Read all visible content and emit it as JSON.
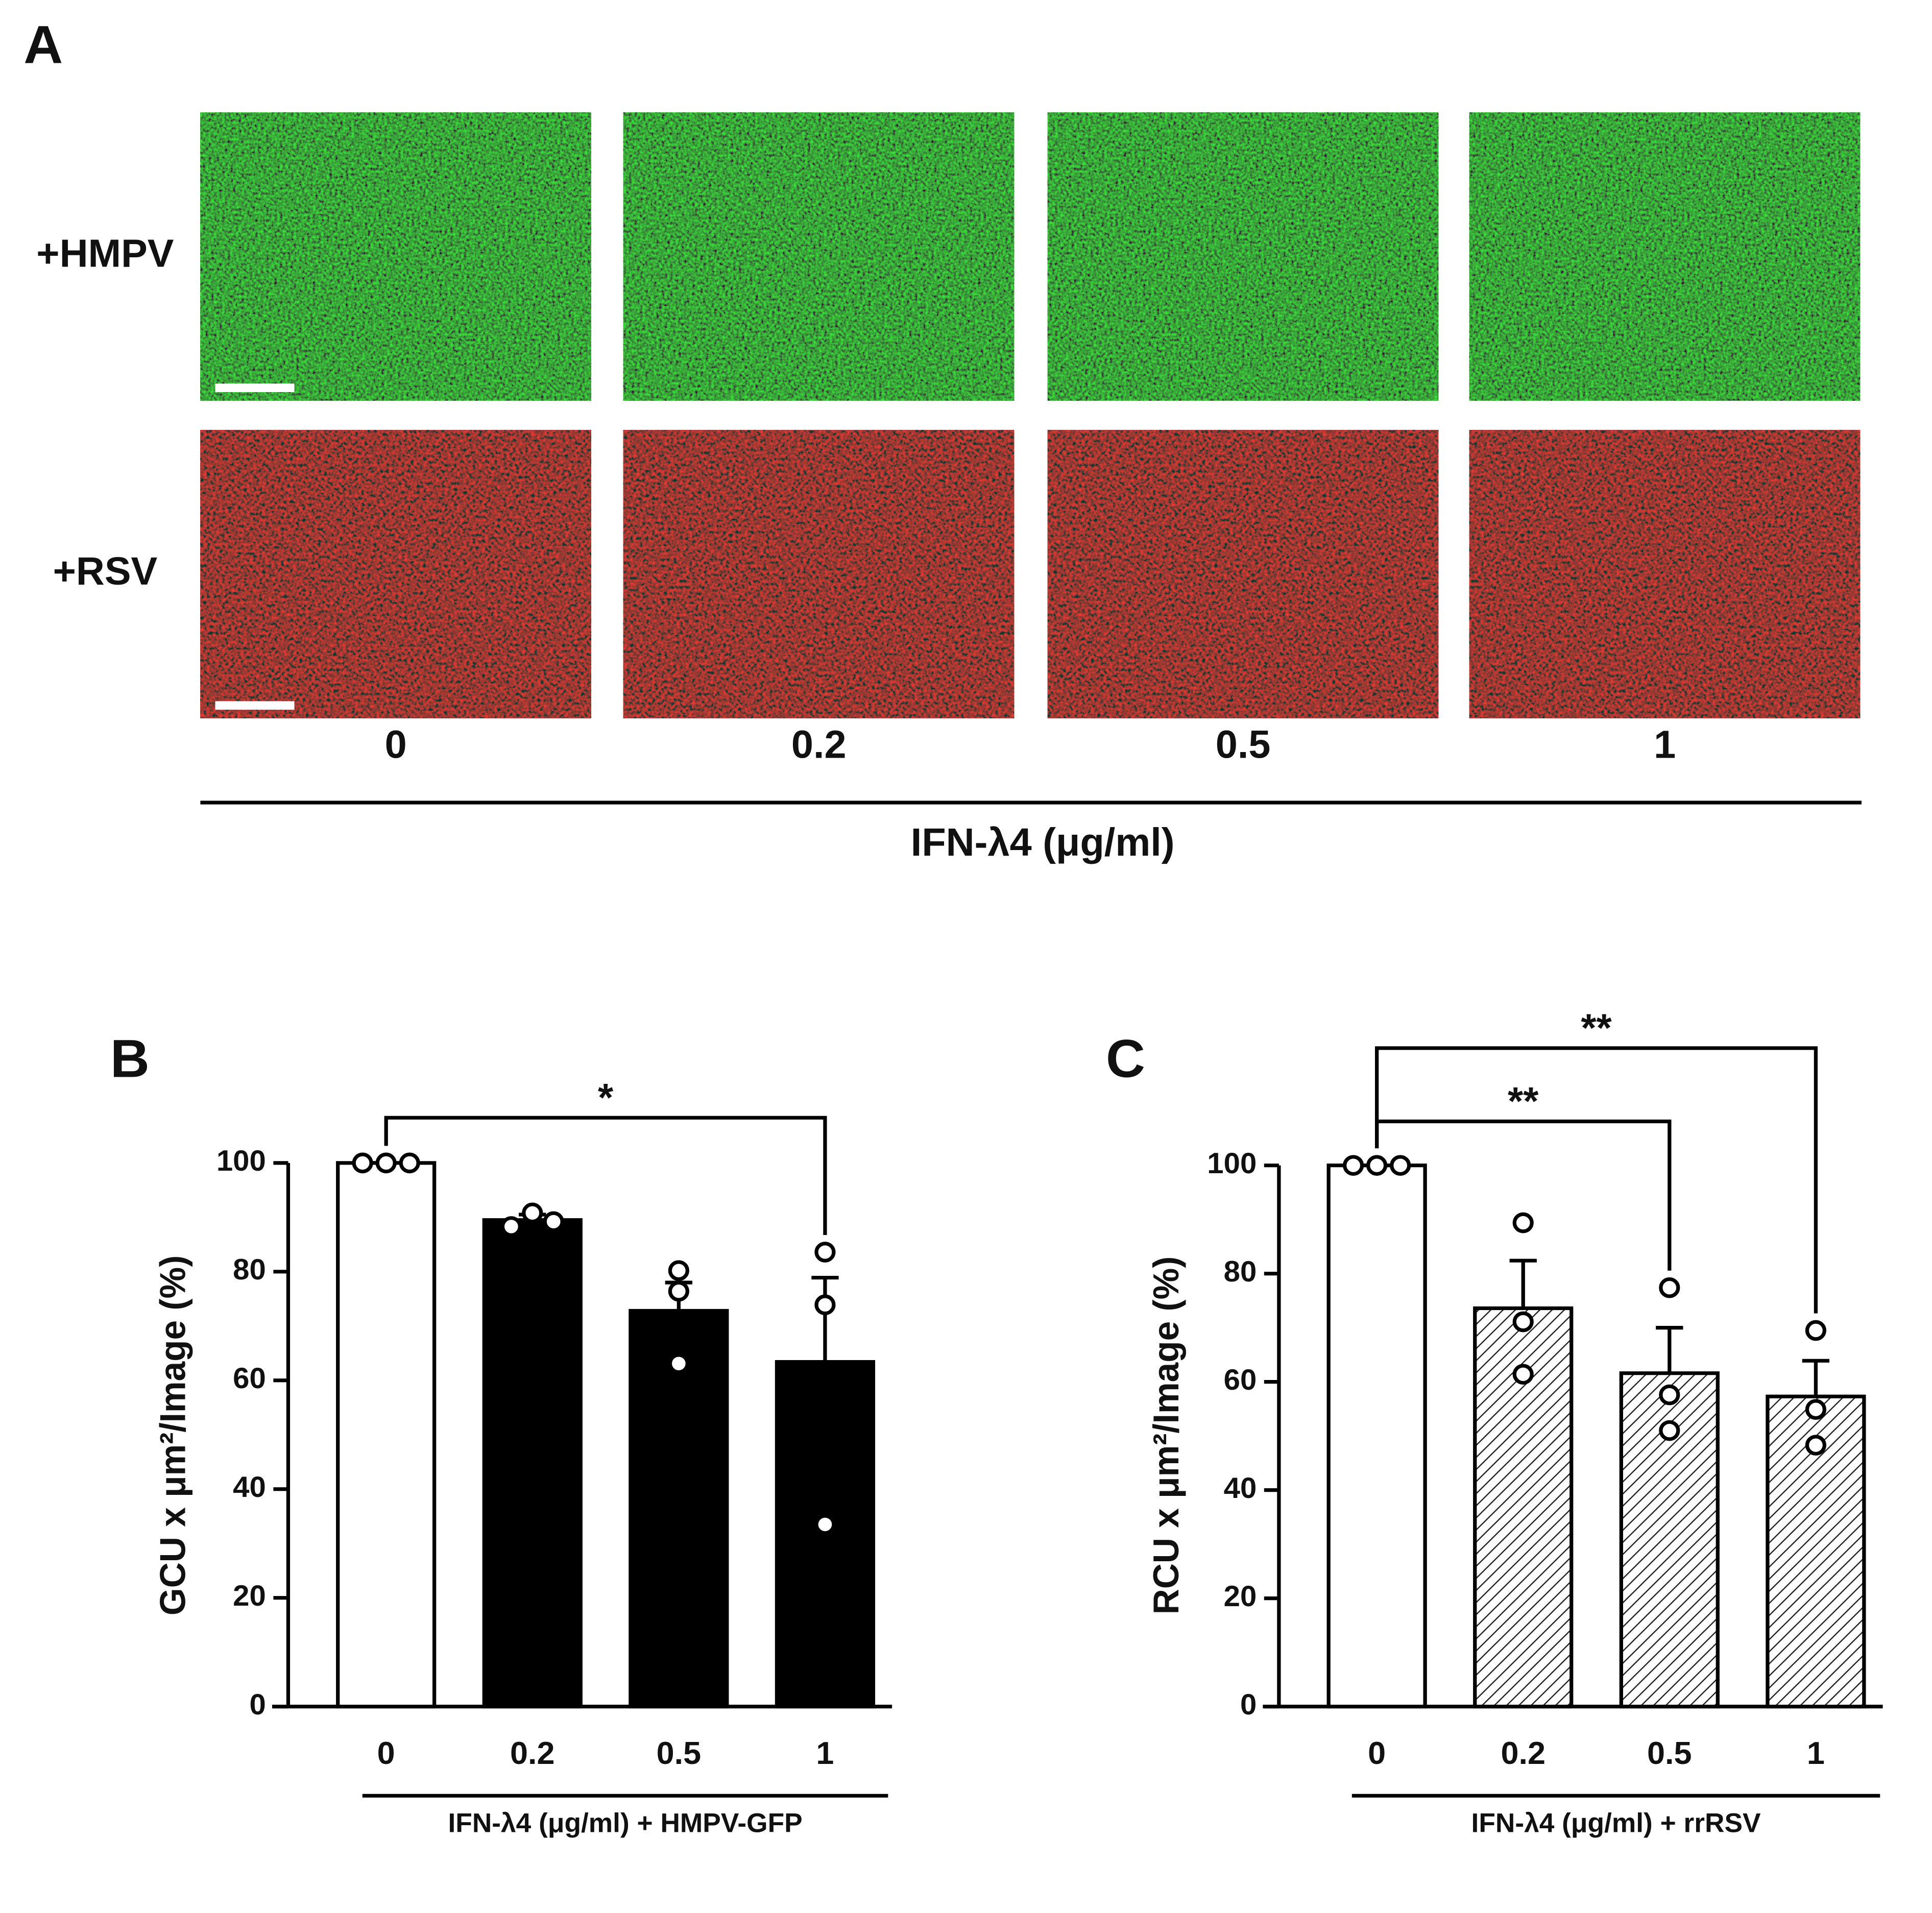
{
  "panel_a": {
    "label": "A",
    "rows": [
      "+HMPV",
      "+RSV"
    ],
    "columns": [
      "0",
      "0.2",
      "0.5",
      "1"
    ],
    "axis_label": "IFN-λ4 (μg/ml)"
  },
  "chart_data": [
    {
      "type": "bar",
      "panel": "B",
      "categories": [
        "0",
        "0.2",
        "0.5",
        "1"
      ],
      "values": [
        100,
        89.5,
        72.8,
        63.4
      ],
      "errors": [
        0,
        1,
        5.2,
        15.5
      ],
      "points": [
        [
          100,
          100,
          100
        ],
        [
          88.3,
          90.8,
          89.2
        ],
        [
          80.2,
          76.4,
          63.1
        ],
        [
          83.6,
          73.9,
          33.5
        ]
      ],
      "bar_fills": [
        "#ffffff",
        "#000000",
        "#000000",
        "#000000"
      ],
      "y_label": "GCU x μm²/Image (%)",
      "x_label": "IFN-λ4 (μg/ml) + HMPV-GFP",
      "ylim": [
        0,
        100
      ],
      "yticks": [
        0,
        20,
        40,
        60,
        80,
        100
      ],
      "comparisons": [
        {
          "label": "*",
          "between": [
            0,
            3
          ]
        }
      ]
    },
    {
      "type": "bar",
      "panel": "C",
      "categories": [
        "0",
        "0.2",
        "0.5",
        "1"
      ],
      "values": [
        100,
        73.6,
        61.6,
        57.3
      ],
      "errors": [
        0,
        8.8,
        8.4,
        6.6
      ],
      "points": [
        [
          100,
          100,
          100
        ],
        [
          89.4,
          71.1,
          61.4
        ],
        [
          77.4,
          57.6,
          51.0
        ],
        [
          69.5,
          54.9,
          48.3
        ]
      ],
      "bar_fills": [
        "#ffffff",
        "hatch",
        "hatch",
        "hatch"
      ],
      "y_label": "RCU x μm²/Image (%)",
      "x_label": "IFN-λ4 (μg/ml) + rrRSV",
      "ylim": [
        0,
        100
      ],
      "yticks": [
        0,
        20,
        40,
        60,
        80,
        100
      ],
      "comparisons": [
        {
          "label": "**",
          "between": [
            0,
            2
          ]
        },
        {
          "label": "**",
          "between": [
            0,
            3
          ]
        }
      ]
    }
  ]
}
